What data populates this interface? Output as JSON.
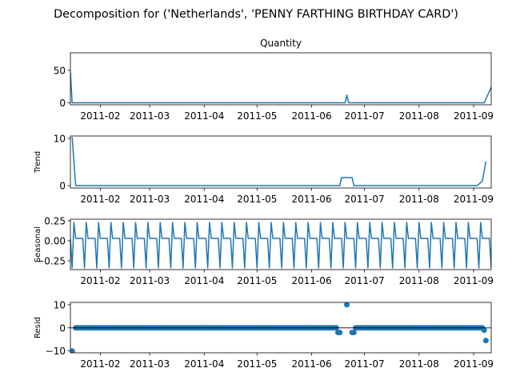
{
  "figure": {
    "title": "Decomposition for ('Netherlands', 'PENNY FARTHING BIRTHDAY CARD')"
  },
  "colors": {
    "series": "#1f77b4",
    "axis": "#000000",
    "background": "#ffffff"
  },
  "chart_data": [
    {
      "type": "line",
      "title": "Quantity",
      "ylabel": "",
      "xlim": [
        "2011-01-15",
        "2011-09-11"
      ],
      "ylim": [
        -3,
        77
      ],
      "y_ticks": [
        0,
        50
      ],
      "x_ticks": [
        "2011-02",
        "2011-03",
        "2011-04",
        "2011-05",
        "2011-06",
        "2011-07",
        "2011-08",
        "2011-09"
      ],
      "grid": false,
      "series": [
        {
          "points": [
            [
              "2011-01-15",
              48
            ],
            [
              "2011-01-16",
              0
            ],
            [
              "2011-06-20",
              0
            ],
            [
              "2011-06-21",
              12
            ],
            [
              "2011-06-22",
              0
            ],
            [
              "2011-09-07",
              0
            ],
            [
              "2011-09-11",
              24
            ]
          ]
        }
      ]
    },
    {
      "type": "line",
      "title": "",
      "ylabel": "Trend",
      "xlim": [
        "2011-01-15",
        "2011-09-11"
      ],
      "ylim": [
        -0.5,
        10.5
      ],
      "y_ticks": [
        0,
        10
      ],
      "x_ticks": [
        "2011-02",
        "2011-03",
        "2011-04",
        "2011-05",
        "2011-06",
        "2011-07",
        "2011-08",
        "2011-09"
      ],
      "grid": false,
      "series": [
        {
          "points": [
            [
              "2011-01-16",
              10.3
            ],
            [
              "2011-01-18",
              0
            ],
            [
              "2011-06-17",
              0
            ],
            [
              "2011-06-18",
              1.7
            ],
            [
              "2011-06-24",
              1.7
            ],
            [
              "2011-06-25",
              0
            ],
            [
              "2011-09-03",
              0
            ],
            [
              "2011-09-06",
              1
            ],
            [
              "2011-09-08",
              5.1
            ]
          ]
        }
      ]
    },
    {
      "type": "line",
      "title": "",
      "ylabel": "Seasonal",
      "xlim": [
        "2011-01-15",
        "2011-09-11"
      ],
      "ylim": [
        -0.36,
        0.27
      ],
      "y_ticks": [
        -0.25,
        0.0,
        0.25
      ],
      "y_tick_labels": [
        "−0.25",
        "0.00",
        "0.25"
      ],
      "x_ticks": [
        "2011-02",
        "2011-03",
        "2011-04",
        "2011-05",
        "2011-06",
        "2011-07",
        "2011-08",
        "2011-09"
      ],
      "grid": false,
      "seasonal_start": "2011-01-15",
      "seasonal_period_days": 7,
      "seasonal_pattern": [
        0.03,
        -0.34,
        0.23,
        0.03,
        0.03,
        0.03,
        0.03
      ],
      "series": [
        {
          "points": []
        }
      ]
    },
    {
      "type": "scatter",
      "title": "",
      "ylabel": "Resid",
      "xlim": [
        "2011-01-15",
        "2011-09-11"
      ],
      "ylim": [
        -10.8,
        11
      ],
      "y_ticks": [
        -10,
        0,
        10
      ],
      "y_tick_labels": [
        "−10",
        "0",
        "10"
      ],
      "x_ticks": [
        "2011-02",
        "2011-03",
        "2011-04",
        "2011-05",
        "2011-06",
        "2011-07",
        "2011-08",
        "2011-09"
      ],
      "grid": false,
      "baseline": 0,
      "dense_range": [
        "2011-01-18",
        "2011-09-06"
      ],
      "series": [
        {
          "points": [
            [
              "2011-01-16",
              -10
            ],
            [
              "2011-06-16",
              -2
            ],
            [
              "2011-06-17",
              -2
            ],
            [
              "2011-06-21",
              10
            ],
            [
              "2011-06-24",
              -2
            ],
            [
              "2011-06-25",
              -2
            ],
            [
              "2011-09-07",
              -1
            ],
            [
              "2011-09-08",
              -5.5
            ]
          ]
        }
      ]
    }
  ]
}
